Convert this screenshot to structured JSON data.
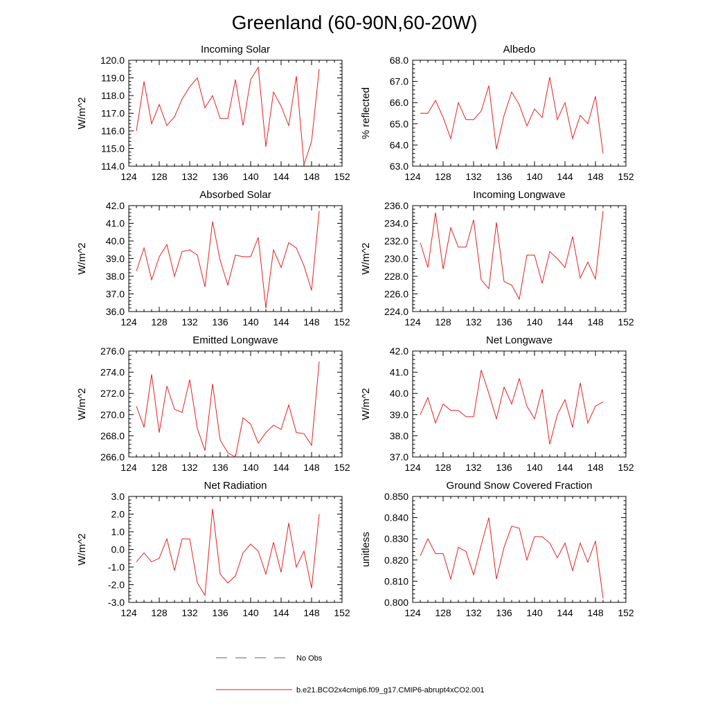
{
  "title": "Greenland (60-90N,60-20W)",
  "legend": {
    "obs_label": "No Obs",
    "obs_color": "#4a5bb5",
    "model_label": "b.e21.BCO2x4cmip6.f09_g17.CMIP6-abrupt4xCO2.001",
    "model_color": "#e61f1f"
  },
  "chart_data": [
    {
      "type": "line",
      "title": "Incoming Solar",
      "ylabel": "W/m^2",
      "xlim": [
        124,
        152
      ],
      "xticks": [
        124,
        128,
        132,
        136,
        140,
        144,
        148,
        152
      ],
      "xtick_labels": [
        "124",
        "128",
        "132",
        "136",
        "140",
        "144",
        "148",
        "152"
      ],
      "ylim": [
        114.0,
        120.0
      ],
      "yticks": [
        114.0,
        115.0,
        116.0,
        117.0,
        118.0,
        119.0,
        120.0
      ],
      "ytick_labels": [
        "114.0",
        "115.0",
        "116.0",
        "117.0",
        "118.0",
        "119.0",
        "120.0"
      ],
      "x": [
        125,
        126,
        127,
        128,
        129,
        130,
        131,
        132,
        133,
        134,
        135,
        136,
        137,
        138,
        139,
        140,
        141,
        142,
        143,
        144,
        145,
        146,
        147,
        148,
        149
      ],
      "values": [
        116.0,
        118.8,
        116.4,
        117.5,
        116.3,
        116.8,
        117.8,
        118.5,
        119.0,
        117.3,
        118.0,
        116.7,
        116.7,
        118.9,
        116.3,
        118.9,
        119.6,
        115.1,
        118.2,
        117.4,
        116.3,
        119.1,
        114.1,
        115.4,
        119.5
      ]
    },
    {
      "type": "line",
      "title": "Albedo",
      "ylabel": "% reflected",
      "xlim": [
        124,
        152
      ],
      "xticks": [
        124,
        128,
        132,
        136,
        140,
        144,
        148,
        152
      ],
      "xtick_labels": [
        "124",
        "128",
        "132",
        "136",
        "140",
        "144",
        "148",
        "152"
      ],
      "ylim": [
        63.0,
        68.0
      ],
      "yticks": [
        63.0,
        64.0,
        65.0,
        66.0,
        67.0,
        68.0
      ],
      "ytick_labels": [
        "63.0",
        "64.0",
        "65.0",
        "66.0",
        "67.0",
        "68.0"
      ],
      "x": [
        125,
        126,
        127,
        128,
        129,
        130,
        131,
        132,
        133,
        134,
        135,
        136,
        137,
        138,
        139,
        140,
        141,
        142,
        143,
        144,
        145,
        146,
        147,
        148,
        149
      ],
      "values": [
        65.5,
        65.5,
        66.1,
        65.3,
        64.3,
        66.0,
        65.2,
        65.2,
        65.6,
        66.8,
        63.8,
        65.4,
        66.5,
        65.9,
        64.9,
        65.7,
        65.3,
        67.2,
        65.2,
        66.0,
        64.3,
        65.4,
        65.0,
        66.3,
        63.6
      ]
    },
    {
      "type": "line",
      "title": "Absorbed Solar",
      "ylabel": "W/m^2",
      "xlim": [
        124,
        152
      ],
      "xticks": [
        124,
        128,
        132,
        136,
        140,
        144,
        148,
        152
      ],
      "xtick_labels": [
        "124",
        "128",
        "132",
        "136",
        "140",
        "144",
        "148",
        "152"
      ],
      "ylim": [
        36.0,
        42.0
      ],
      "yticks": [
        36.0,
        37.0,
        38.0,
        39.0,
        40.0,
        41.0,
        42.0
      ],
      "ytick_labels": [
        "36.0",
        "37.0",
        "38.0",
        "39.0",
        "40.0",
        "41.0",
        "42.0"
      ],
      "x": [
        125,
        126,
        127,
        128,
        129,
        130,
        131,
        132,
        133,
        134,
        135,
        136,
        137,
        138,
        139,
        140,
        141,
        142,
        143,
        144,
        145,
        146,
        147,
        148,
        149
      ],
      "values": [
        38.3,
        39.6,
        37.8,
        39.1,
        39.8,
        38.0,
        39.4,
        39.5,
        39.2,
        37.4,
        41.1,
        38.9,
        37.5,
        39.2,
        39.1,
        39.1,
        40.2,
        36.2,
        39.5,
        38.5,
        39.9,
        39.6,
        38.6,
        37.2,
        41.7
      ]
    },
    {
      "type": "line",
      "title": "Incoming Longwave",
      "ylabel": "W/m^2",
      "xlim": [
        124,
        152
      ],
      "xticks": [
        124,
        128,
        132,
        136,
        140,
        144,
        148,
        152
      ],
      "xtick_labels": [
        "124",
        "128",
        "132",
        "136",
        "140",
        "144",
        "148",
        "152"
      ],
      "ylim": [
        224.0,
        236.0
      ],
      "yticks": [
        224.0,
        226.0,
        228.0,
        230.0,
        232.0,
        234.0,
        236.0
      ],
      "ytick_labels": [
        "224.0",
        "226.0",
        "228.0",
        "230.0",
        "232.0",
        "234.0",
        "236.0"
      ],
      "x": [
        125,
        126,
        127,
        128,
        129,
        130,
        131,
        132,
        133,
        134,
        135,
        136,
        137,
        138,
        139,
        140,
        141,
        142,
        143,
        144,
        145,
        146,
        147,
        148,
        149
      ],
      "values": [
        231.8,
        229.0,
        235.2,
        228.8,
        233.5,
        231.3,
        231.3,
        234.4,
        227.6,
        226.6,
        234.1,
        227.4,
        227.0,
        225.4,
        230.4,
        230.4,
        227.2,
        230.8,
        230.0,
        229.0,
        232.5,
        227.8,
        229.6,
        227.7,
        235.4
      ]
    },
    {
      "type": "line",
      "title": "Emitted Longwave",
      "ylabel": "W/m^2",
      "xlim": [
        124,
        152
      ],
      "xticks": [
        124,
        128,
        132,
        136,
        140,
        144,
        148,
        152
      ],
      "xtick_labels": [
        "124",
        "128",
        "132",
        "136",
        "140",
        "144",
        "148",
        "152"
      ],
      "ylim": [
        266.0,
        276.0
      ],
      "yticks": [
        266.0,
        268.0,
        270.0,
        272.0,
        274.0,
        276.0
      ],
      "ytick_labels": [
        "266.0",
        "268.0",
        "270.0",
        "272.0",
        "274.0",
        "276.0"
      ],
      "x": [
        125,
        126,
        127,
        128,
        129,
        130,
        131,
        132,
        133,
        134,
        135,
        136,
        137,
        138,
        139,
        140,
        141,
        142,
        143,
        144,
        145,
        146,
        147,
        148,
        149
      ],
      "values": [
        270.8,
        268.8,
        273.8,
        268.3,
        272.7,
        270.5,
        270.2,
        273.3,
        268.7,
        266.6,
        272.9,
        267.6,
        266.4,
        266.0,
        269.7,
        269.1,
        267.3,
        268.3,
        269.0,
        268.6,
        270.9,
        268.3,
        268.2,
        267.1,
        275.0
      ]
    },
    {
      "type": "line",
      "title": "Net Longwave",
      "ylabel": "W/m^2",
      "xlim": [
        124,
        152
      ],
      "xticks": [
        124,
        128,
        132,
        136,
        140,
        144,
        148,
        152
      ],
      "xtick_labels": [
        "124",
        "128",
        "132",
        "136",
        "140",
        "144",
        "148",
        "152"
      ],
      "ylim": [
        37.0,
        42.0
      ],
      "yticks": [
        37.0,
        38.0,
        39.0,
        40.0,
        41.0,
        42.0
      ],
      "ytick_labels": [
        "37.0",
        "38.0",
        "39.0",
        "40.0",
        "41.0",
        "42.0"
      ],
      "x": [
        125,
        126,
        127,
        128,
        129,
        130,
        131,
        132,
        133,
        134,
        135,
        136,
        137,
        138,
        139,
        140,
        141,
        142,
        143,
        144,
        145,
        146,
        147,
        148,
        149
      ],
      "values": [
        39.0,
        39.8,
        38.6,
        39.5,
        39.2,
        39.2,
        38.9,
        38.9,
        41.1,
        40.0,
        38.8,
        40.3,
        39.5,
        40.7,
        39.4,
        38.8,
        40.2,
        37.6,
        39.0,
        39.7,
        38.4,
        40.5,
        38.6,
        39.4,
        39.6
      ]
    },
    {
      "type": "line",
      "title": "Net Radiation",
      "ylabel": "W/m^2",
      "xlim": [
        124,
        152
      ],
      "xticks": [
        124,
        128,
        132,
        136,
        140,
        144,
        148,
        152
      ],
      "xtick_labels": [
        "124",
        "128",
        "132",
        "136",
        "140",
        "144",
        "148",
        "152"
      ],
      "ylim": [
        -3.0,
        3.0
      ],
      "yticks": [
        -3.0,
        -2.0,
        -1.0,
        0.0,
        1.0,
        2.0,
        3.0
      ],
      "ytick_labels": [
        "-3.0",
        "-2.0",
        "-1.0",
        "0.0",
        "1.0",
        "2.0",
        "3.0"
      ],
      "x": [
        125,
        126,
        127,
        128,
        129,
        130,
        131,
        132,
        133,
        134,
        135,
        136,
        137,
        138,
        139,
        140,
        141,
        142,
        143,
        144,
        145,
        146,
        147,
        148,
        149
      ],
      "values": [
        -0.7,
        -0.2,
        -0.7,
        -0.5,
        0.6,
        -1.2,
        0.6,
        0.6,
        -1.9,
        -2.6,
        2.3,
        -1.4,
        -1.9,
        -1.5,
        -0.2,
        0.3,
        -0.1,
        -1.4,
        0.4,
        -1.3,
        1.5,
        -1.0,
        -0.1,
        -2.2,
        2.0
      ]
    },
    {
      "type": "line",
      "title": "Ground Snow Covered Fraction",
      "ylabel": "unitless",
      "xlim": [
        124,
        152
      ],
      "xticks": [
        124,
        128,
        132,
        136,
        140,
        144,
        148,
        152
      ],
      "xtick_labels": [
        "124",
        "128",
        "132",
        "136",
        "140",
        "144",
        "148",
        "152"
      ],
      "ylim": [
        0.8,
        0.85
      ],
      "yticks": [
        0.8,
        0.81,
        0.82,
        0.83,
        0.84,
        0.85
      ],
      "ytick_labels": [
        "0.800",
        "0.810",
        "0.820",
        "0.830",
        "0.840",
        "0.850"
      ],
      "x": [
        125,
        126,
        127,
        128,
        129,
        130,
        131,
        132,
        133,
        134,
        135,
        136,
        137,
        138,
        139,
        140,
        141,
        142,
        143,
        144,
        145,
        146,
        147,
        148,
        149
      ],
      "values": [
        0.822,
        0.83,
        0.823,
        0.823,
        0.811,
        0.826,
        0.824,
        0.813,
        0.827,
        0.84,
        0.811,
        0.826,
        0.836,
        0.835,
        0.82,
        0.831,
        0.831,
        0.828,
        0.821,
        0.828,
        0.815,
        0.828,
        0.819,
        0.829,
        0.802
      ]
    }
  ]
}
